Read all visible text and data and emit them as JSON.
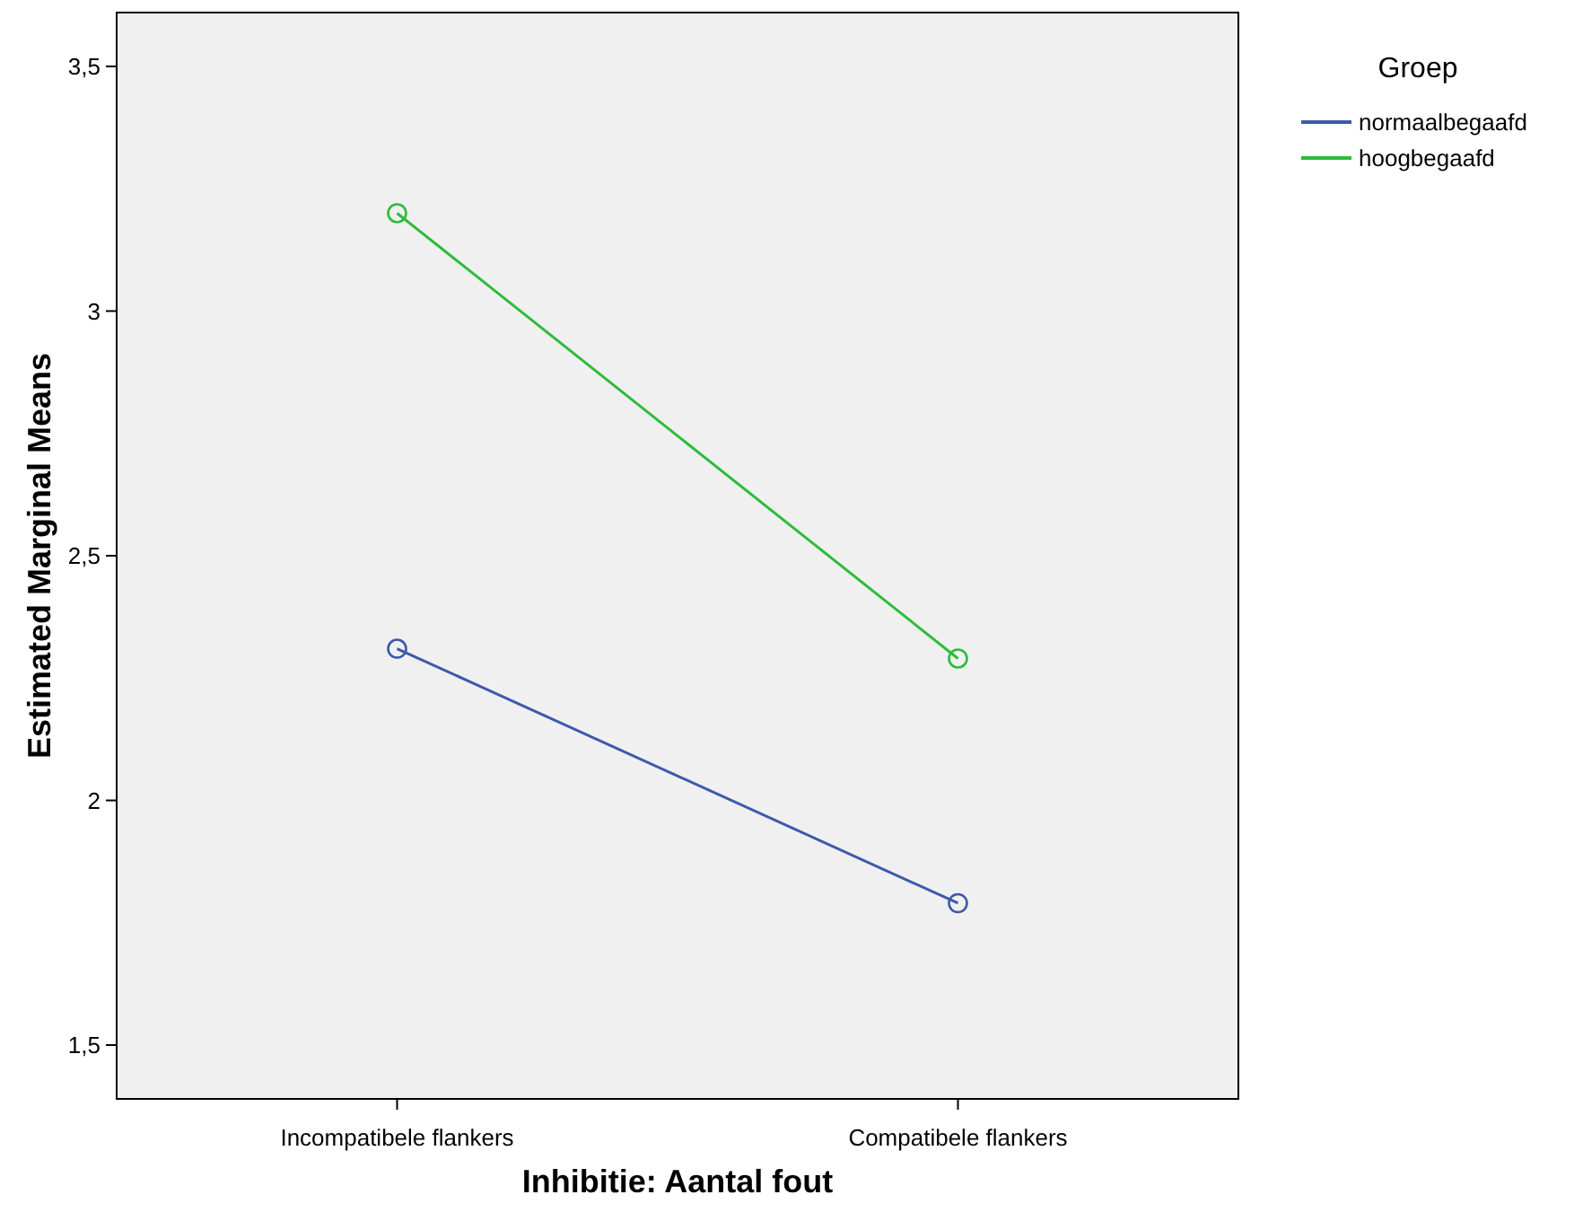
{
  "chart_data": {
    "type": "line",
    "xlabel": "Inhibitie: Aantal fout",
    "ylabel": "Estimated Marginal Means",
    "legend_title": "Groep",
    "categories": [
      "Incompatibele flankers",
      "Compatibele flankers"
    ],
    "series": [
      {
        "name": "normaalbegaafd",
        "color": "#3e58ac",
        "values": [
          2.31,
          1.79
        ]
      },
      {
        "name": "hoogbegaafd",
        "color": "#2dbb3a",
        "values": [
          3.2,
          2.29
        ]
      }
    ],
    "ylim": [
      1.39,
      3.61
    ],
    "yticks": [
      {
        "value": 1.5,
        "label": "1,5"
      },
      2,
      {
        "value": 2.5,
        "label": "2,5"
      },
      3,
      {
        "value": 3.5,
        "label": "3,5"
      }
    ],
    "grid": false,
    "legend": "top right",
    "marker": "circle",
    "line_style": "solid"
  }
}
